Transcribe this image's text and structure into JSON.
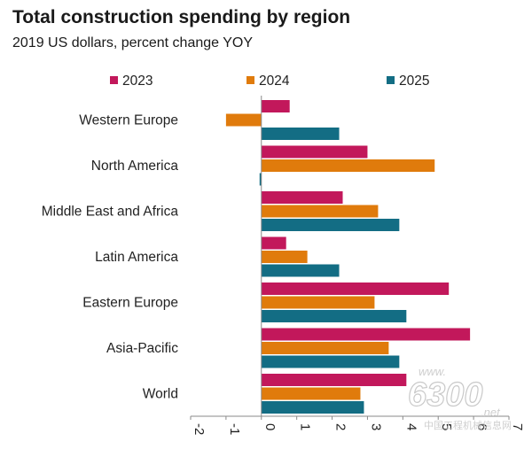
{
  "header": {
    "title": "Total construction spending by region",
    "subtitle": "2019 US dollars, percent change YOY"
  },
  "watermark": {
    "top": "www.",
    "number": "6300",
    "suffix": ".net",
    "chinese": "中国工程机械信息网"
  },
  "chart_data": {
    "type": "bar",
    "orientation": "horizontal",
    "title": "Total construction spending by region",
    "subtitle": "2019 US dollars, percent change YOY",
    "categories": [
      "Western Europe",
      "North America",
      "Middle East and Africa",
      "Latin America",
      "Eastern Europe",
      "Asia-Pacific",
      "World"
    ],
    "series": [
      {
        "name": "2023",
        "color": "#c2185b",
        "values": [
          0.8,
          3.0,
          2.3,
          0.7,
          5.3,
          5.9,
          4.1
        ]
      },
      {
        "name": "2024",
        "color": "#e07b0c",
        "values": [
          -1.0,
          4.9,
          3.3,
          1.3,
          3.2,
          3.6,
          2.8
        ]
      },
      {
        "name": "2025",
        "color": "#136d84",
        "values": [
          2.2,
          -0.05,
          3.9,
          2.2,
          4.1,
          3.9,
          2.9
        ]
      }
    ],
    "xlim": [
      -2,
      7
    ],
    "xticks": [
      -2,
      -1,
      0,
      1,
      2,
      3,
      4,
      5,
      6,
      7
    ],
    "xlabel": "",
    "ylabel": "",
    "grid": false,
    "legend_position": "top"
  }
}
